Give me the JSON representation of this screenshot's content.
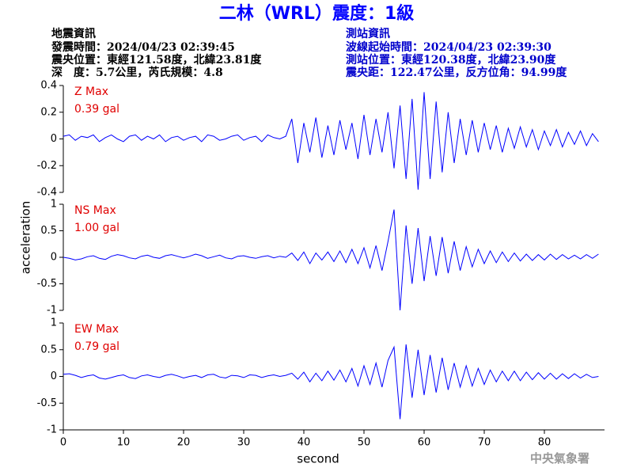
{
  "header": {
    "title": "二林（WRL）震度：1級",
    "left": [
      "地震資訊",
      "發震時間：2024/04/23 02:39:45",
      "震央位置：東經121.58度，北緯23.81度",
      "深　度：5.7公里，芮氏規模：4.8"
    ],
    "right": [
      "測站資訊",
      "波線起始時間：2024/04/23 02:39:30",
      "測站位置：東經120.38度，北緯23.90度",
      "震央距：122.47公里，反方位角：94.99度"
    ]
  },
  "footer": "中央氣象署",
  "chart_data": [
    {
      "type": "line",
      "label": "Z Max",
      "max": "0.39 gal",
      "color": "#0000ff",
      "xlim": [
        0,
        90
      ],
      "ylim": [
        -0.4,
        0.4
      ],
      "yticks": [
        0.4,
        0.2,
        0,
        -0.2,
        -0.4
      ],
      "x": [
        0,
        1,
        2,
        3,
        4,
        5,
        6,
        7,
        8,
        9,
        10,
        11,
        12,
        13,
        14,
        15,
        16,
        17,
        18,
        19,
        20,
        21,
        22,
        23,
        24,
        25,
        26,
        27,
        28,
        29,
        30,
        31,
        32,
        33,
        34,
        35,
        36,
        37,
        38,
        39,
        40,
        41,
        42,
        43,
        44,
        45,
        46,
        47,
        48,
        49,
        50,
        51,
        52,
        53,
        54,
        55,
        56,
        57,
        58,
        59,
        60,
        61,
        62,
        63,
        64,
        65,
        66,
        67,
        68,
        69,
        70,
        71,
        72,
        73,
        74,
        75,
        76,
        77,
        78,
        79,
        80,
        81,
        82,
        83,
        84,
        85,
        86,
        87,
        88,
        89
      ],
      "values": [
        0.02,
        0.03,
        -0.01,
        0.02,
        0.01,
        0.03,
        -0.02,
        0.01,
        0.03,
        0.0,
        -0.02,
        0.02,
        0.03,
        -0.01,
        0.02,
        0.0,
        0.03,
        -0.02,
        0.01,
        0.02,
        -0.01,
        0.01,
        0.02,
        -0.02,
        0.03,
        0.02,
        -0.01,
        0.0,
        0.02,
        0.03,
        -0.01,
        0.01,
        0.02,
        -0.02,
        0.03,
        0.01,
        0.0,
        0.02,
        0.15,
        -0.18,
        0.12,
        -0.1,
        0.16,
        -0.14,
        0.1,
        -0.12,
        0.14,
        -0.08,
        0.12,
        -0.15,
        0.18,
        -0.12,
        0.15,
        -0.1,
        0.2,
        -0.22,
        0.25,
        -0.3,
        0.3,
        -0.38,
        0.35,
        -0.3,
        0.28,
        -0.25,
        0.2,
        -0.18,
        0.15,
        -0.12,
        0.14,
        -0.1,
        0.12,
        -0.08,
        0.1,
        -0.1,
        0.08,
        -0.07,
        0.09,
        -0.06,
        0.07,
        -0.08,
        0.06,
        -0.05,
        0.07,
        -0.06,
        0.05,
        -0.04,
        0.06,
        -0.05,
        0.04,
        -0.02
      ]
    },
    {
      "type": "line",
      "label": "NS Max",
      "max": "1.00 gal",
      "ylabel": "acceleration",
      "color": "#0000ff",
      "xlim": [
        0,
        90
      ],
      "ylim": [
        -1,
        1
      ],
      "yticks": [
        1,
        0.5,
        0,
        -0.5,
        -1
      ],
      "x": [
        0,
        1,
        2,
        3,
        4,
        5,
        6,
        7,
        8,
        9,
        10,
        11,
        12,
        13,
        14,
        15,
        16,
        17,
        18,
        19,
        20,
        21,
        22,
        23,
        24,
        25,
        26,
        27,
        28,
        29,
        30,
        31,
        32,
        33,
        34,
        35,
        36,
        37,
        38,
        39,
        40,
        41,
        42,
        43,
        44,
        45,
        46,
        47,
        48,
        49,
        50,
        51,
        52,
        53,
        54,
        55,
        56,
        57,
        58,
        59,
        60,
        61,
        62,
        63,
        64,
        65,
        66,
        67,
        68,
        69,
        70,
        71,
        72,
        73,
        74,
        75,
        76,
        77,
        78,
        79,
        80,
        81,
        82,
        83,
        84,
        85,
        86,
        87,
        88,
        89
      ],
      "values": [
        0.0,
        -0.02,
        -0.05,
        -0.03,
        0.01,
        0.03,
        -0.02,
        -0.04,
        0.02,
        0.05,
        0.03,
        -0.01,
        -0.03,
        0.02,
        0.04,
        0.0,
        -0.02,
        0.03,
        0.05,
        0.02,
        -0.01,
        0.02,
        0.06,
        0.03,
        -0.02,
        0.01,
        0.04,
        -0.01,
        -0.03,
        0.02,
        0.03,
        0.0,
        -0.02,
        0.01,
        0.03,
        -0.01,
        0.02,
        0.0,
        0.08,
        -0.06,
        0.1,
        -0.12,
        0.08,
        -0.05,
        0.1,
        -0.08,
        0.12,
        -0.1,
        0.15,
        -0.12,
        0.18,
        -0.2,
        0.22,
        -0.25,
        0.3,
        0.9,
        -1.0,
        0.6,
        -0.5,
        0.55,
        -0.45,
        0.4,
        -0.35,
        0.38,
        -0.3,
        0.3,
        -0.25,
        0.2,
        -0.18,
        0.15,
        -0.12,
        0.12,
        -0.1,
        0.1,
        -0.08,
        0.08,
        -0.07,
        0.06,
        -0.06,
        0.05,
        -0.05,
        0.06,
        -0.04,
        0.05,
        -0.03,
        0.04,
        -0.03,
        0.05,
        -0.02,
        0.06
      ]
    },
    {
      "type": "line",
      "label": "EW Max",
      "max": "0.79 gal",
      "xlabel": "second",
      "color": "#0000ff",
      "xlim": [
        0,
        90
      ],
      "ylim": [
        -1,
        1
      ],
      "yticks": [
        1,
        0.5,
        0,
        -0.5,
        -1
      ],
      "xticks": [
        0,
        10,
        20,
        30,
        40,
        50,
        60,
        70,
        80
      ],
      "x": [
        0,
        1,
        2,
        3,
        4,
        5,
        6,
        7,
        8,
        9,
        10,
        11,
        12,
        13,
        14,
        15,
        16,
        17,
        18,
        19,
        20,
        21,
        22,
        23,
        24,
        25,
        26,
        27,
        28,
        29,
        30,
        31,
        32,
        33,
        34,
        35,
        36,
        37,
        38,
        39,
        40,
        41,
        42,
        43,
        44,
        45,
        46,
        47,
        48,
        49,
        50,
        51,
        52,
        53,
        54,
        55,
        56,
        57,
        58,
        59,
        60,
        61,
        62,
        63,
        64,
        65,
        66,
        67,
        68,
        69,
        70,
        71,
        72,
        73,
        74,
        75,
        76,
        77,
        78,
        79,
        80,
        81,
        82,
        83,
        84,
        85,
        86,
        87,
        88,
        89
      ],
      "values": [
        0.04,
        0.05,
        0.02,
        -0.02,
        0.01,
        0.03,
        -0.03,
        -0.05,
        -0.02,
        0.01,
        0.03,
        -0.02,
        -0.04,
        0.01,
        0.03,
        0.0,
        -0.02,
        0.02,
        0.04,
        0.01,
        -0.03,
        0.0,
        0.02,
        -0.02,
        0.03,
        0.04,
        -0.01,
        -0.03,
        0.02,
        0.01,
        -0.02,
        0.03,
        0.02,
        -0.02,
        0.01,
        0.03,
        0.0,
        0.02,
        0.06,
        -0.05,
        0.08,
        -0.1,
        0.06,
        -0.08,
        0.1,
        -0.07,
        0.12,
        -0.1,
        0.15,
        -0.18,
        0.2,
        -0.15,
        0.25,
        -0.2,
        0.3,
        0.55,
        -0.8,
        0.6,
        -0.4,
        0.5,
        -0.35,
        0.4,
        -0.3,
        0.35,
        -0.25,
        0.25,
        -0.2,
        0.2,
        -0.18,
        0.15,
        -0.15,
        0.12,
        -0.1,
        0.1,
        -0.08,
        0.1,
        -0.08,
        0.08,
        -0.06,
        0.07,
        -0.05,
        0.06,
        -0.05,
        0.05,
        -0.04,
        0.05,
        -0.03,
        0.04,
        -0.02,
        0.0
      ]
    }
  ]
}
